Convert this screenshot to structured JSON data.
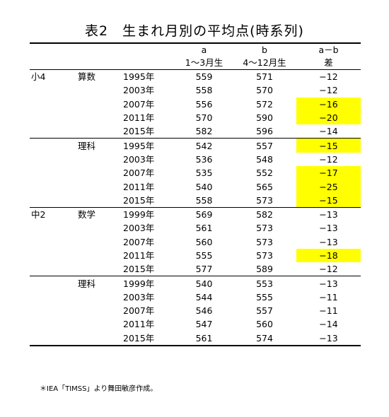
{
  "title": "表2　生まれ月別の平均点(時系列)",
  "headers": {
    "a_top": "a",
    "a_bottom": "1～3月生",
    "b_top": "b",
    "b_bottom": "4～12月生",
    "diff_top": "a－b",
    "diff_bottom": "差"
  },
  "highlight_color": "#ffff00",
  "rows": [
    {
      "grade": "小4",
      "subject": "算数",
      "year": "1995年",
      "a": "559",
      "b": "571",
      "diff": "−12",
      "hl": false
    },
    {
      "grade": "",
      "subject": "",
      "year": "2003年",
      "a": "558",
      "b": "570",
      "diff": "−12",
      "hl": false
    },
    {
      "grade": "",
      "subject": "",
      "year": "2007年",
      "a": "556",
      "b": "572",
      "diff": "−16",
      "hl": true
    },
    {
      "grade": "",
      "subject": "",
      "year": "2011年",
      "a": "570",
      "b": "590",
      "diff": "−20",
      "hl": true
    },
    {
      "grade": "",
      "subject": "",
      "year": "2015年",
      "a": "582",
      "b": "596",
      "diff": "−14",
      "hl": false
    },
    {
      "grade": "",
      "subject": "理科",
      "year": "1995年",
      "a": "542",
      "b": "557",
      "diff": "−15",
      "hl": true
    },
    {
      "grade": "",
      "subject": "",
      "year": "2003年",
      "a": "536",
      "b": "548",
      "diff": "−12",
      "hl": false
    },
    {
      "grade": "",
      "subject": "",
      "year": "2007年",
      "a": "535",
      "b": "552",
      "diff": "−17",
      "hl": true
    },
    {
      "grade": "",
      "subject": "",
      "year": "2011年",
      "a": "540",
      "b": "565",
      "diff": "−25",
      "hl": true
    },
    {
      "grade": "",
      "subject": "",
      "year": "2015年",
      "a": "558",
      "b": "573",
      "diff": "−15",
      "hl": true
    },
    {
      "grade": "中2",
      "subject": "数学",
      "year": "1999年",
      "a": "569",
      "b": "582",
      "diff": "−13",
      "hl": false
    },
    {
      "grade": "",
      "subject": "",
      "year": "2003年",
      "a": "561",
      "b": "573",
      "diff": "−13",
      "hl": false
    },
    {
      "grade": "",
      "subject": "",
      "year": "2007年",
      "a": "560",
      "b": "573",
      "diff": "−13",
      "hl": false
    },
    {
      "grade": "",
      "subject": "",
      "year": "2011年",
      "a": "555",
      "b": "573",
      "diff": "−18",
      "hl": true
    },
    {
      "grade": "",
      "subject": "",
      "year": "2015年",
      "a": "577",
      "b": "589",
      "diff": "−12",
      "hl": false
    },
    {
      "grade": "",
      "subject": "理科",
      "year": "1999年",
      "a": "540",
      "b": "553",
      "diff": "−13",
      "hl": false
    },
    {
      "grade": "",
      "subject": "",
      "year": "2003年",
      "a": "544",
      "b": "555",
      "diff": "−11",
      "hl": false
    },
    {
      "grade": "",
      "subject": "",
      "year": "2007年",
      "a": "546",
      "b": "557",
      "diff": "−11",
      "hl": false
    },
    {
      "grade": "",
      "subject": "",
      "year": "2011年",
      "a": "547",
      "b": "560",
      "diff": "−14",
      "hl": false
    },
    {
      "grade": "",
      "subject": "",
      "year": "2015年",
      "a": "561",
      "b": "574",
      "diff": "−13",
      "hl": false
    }
  ],
  "note": "＊IEA「TIMSS」より舞田敏彦作成。"
}
